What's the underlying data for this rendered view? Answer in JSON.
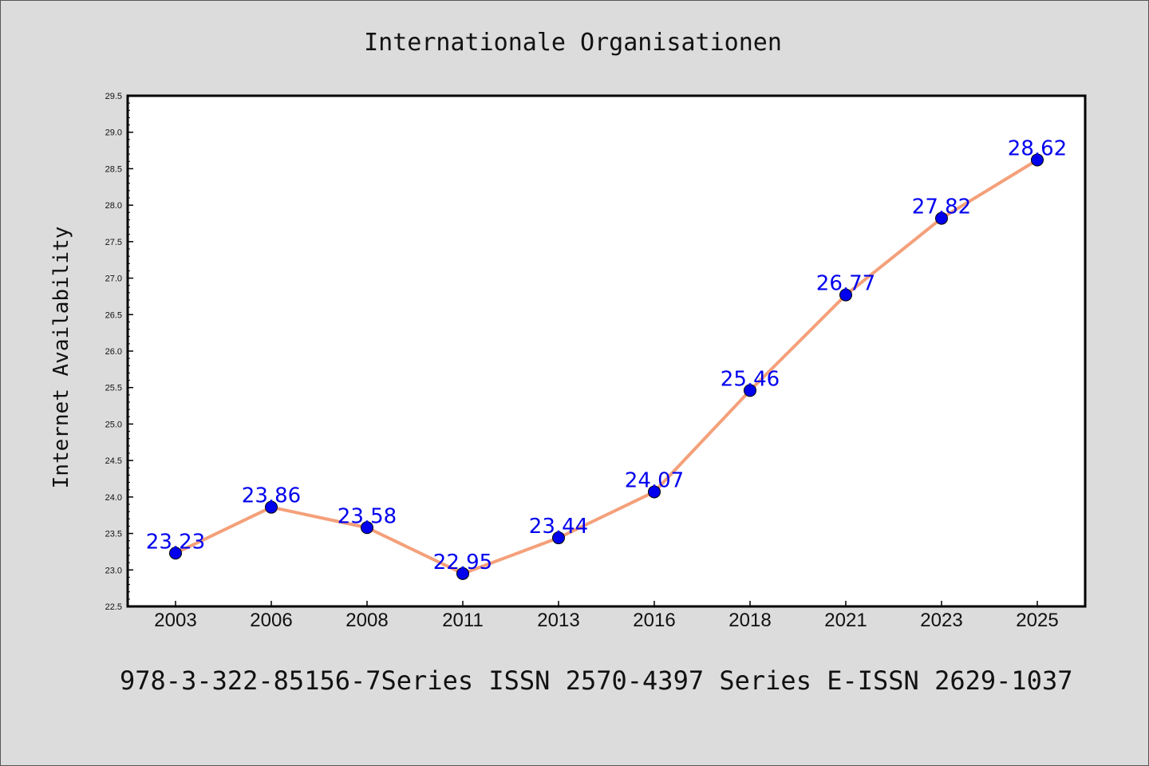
{
  "chart_data": {
    "type": "line",
    "title": "Internationale Organisationen",
    "ylabel": "Internet Availability",
    "xlabel": "",
    "categories": [
      "2003",
      "2006",
      "2008",
      "2011",
      "2013",
      "2016",
      "2018",
      "2021",
      "2023",
      "2025"
    ],
    "values": [
      23.23,
      23.86,
      23.58,
      22.95,
      23.44,
      24.07,
      25.46,
      26.77,
      27.82,
      28.62
    ],
    "value_labels": [
      "23.23",
      "23.86",
      "23.58",
      "22.95",
      "23.44",
      "24.07",
      "25.46",
      "26.77",
      "27.82",
      "28.62"
    ],
    "ylim": [
      22.5,
      29.5
    ],
    "yticks": [
      "22.5",
      "23.0",
      "23.5",
      "24.0",
      "24.5",
      "25.0",
      "25.5",
      "26.0",
      "26.5",
      "27.0",
      "27.5",
      "28.0",
      "28.5",
      "29.0",
      "29.5"
    ],
    "grid": false,
    "line_color": "#f4a07a",
    "marker_color": "#0000ee",
    "label_color": "#0000ee"
  },
  "footer": "978-3-322-85156-7Series ISSN 2570-4397 Series E-ISSN 2629-1037"
}
